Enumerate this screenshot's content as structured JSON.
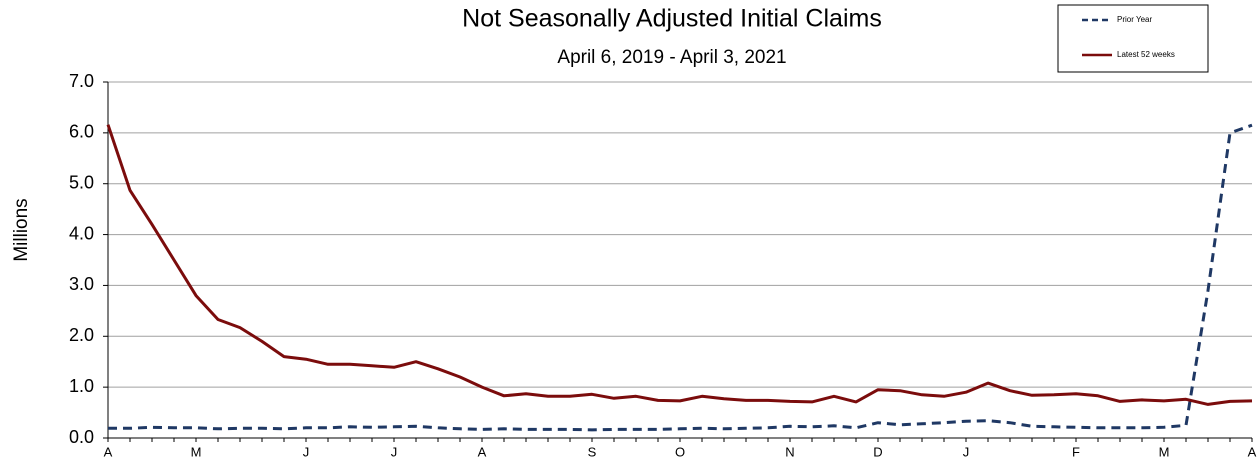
{
  "chart_data": {
    "type": "line",
    "title": "Not Seasonally Adjusted Initial Claims",
    "subtitle": "April 6, 2019  -  April 3, 2021",
    "y_label": "Millions",
    "categories": [
      "A",
      null,
      null,
      null,
      "M",
      null,
      null,
      null,
      null,
      "J",
      null,
      null,
      null,
      "J",
      null,
      null,
      null,
      "A",
      null,
      null,
      null,
      null,
      "S",
      null,
      null,
      null,
      "O",
      null,
      null,
      null,
      null,
      "N",
      null,
      null,
      null,
      "D",
      null,
      null,
      null,
      "J",
      null,
      null,
      null,
      null,
      "F",
      null,
      null,
      null,
      "M",
      null,
      null,
      null,
      "A"
    ],
    "series": [
      {
        "name": "Prior Year",
        "color": "#1f3864",
        "dashed": true,
        "values": [
          0.19,
          0.19,
          0.21,
          0.2,
          0.2,
          0.18,
          0.19,
          0.19,
          0.18,
          0.2,
          0.2,
          0.22,
          0.21,
          0.22,
          0.23,
          0.2,
          0.18,
          0.17,
          0.18,
          0.17,
          0.17,
          0.17,
          0.16,
          0.17,
          0.17,
          0.17,
          0.18,
          0.19,
          0.18,
          0.19,
          0.2,
          0.23,
          0.22,
          0.24,
          0.2,
          0.3,
          0.26,
          0.28,
          0.3,
          0.33,
          0.34,
          0.3,
          0.23,
          0.22,
          0.21,
          0.2,
          0.2,
          0.2,
          0.21,
          0.25,
          2.9,
          6.0,
          6.15
        ]
      },
      {
        "name": "Latest 52 weeks",
        "color": "#7b0c0c",
        "dashed": false,
        "values": [
          6.16,
          4.87,
          4.2,
          3.5,
          2.8,
          2.33,
          2.17,
          1.9,
          1.6,
          1.55,
          1.45,
          1.45,
          1.42,
          1.39,
          1.5,
          1.36,
          1.2,
          1.0,
          0.83,
          0.87,
          0.82,
          0.82,
          0.86,
          0.78,
          0.82,
          0.74,
          0.73,
          0.82,
          0.77,
          0.74,
          0.74,
          0.72,
          0.71,
          0.82,
          0.71,
          0.95,
          0.93,
          0.85,
          0.82,
          0.9,
          1.08,
          0.93,
          0.84,
          0.85,
          0.87,
          0.83,
          0.72,
          0.75,
          0.73,
          0.76,
          0.66,
          0.72,
          0.73
        ]
      }
    ],
    "ylim": [
      0,
      7
    ],
    "yticks": [
      {
        "value": 0,
        "label": "0.0"
      },
      {
        "value": 1,
        "label": "1.0"
      },
      {
        "value": 2,
        "label": "2.0"
      },
      {
        "value": 3,
        "label": "3.0"
      },
      {
        "value": 4,
        "label": "4.0"
      },
      {
        "value": 5,
        "label": "5.0"
      },
      {
        "value": 6,
        "label": "6.0"
      },
      {
        "value": 7,
        "label": "7.0"
      }
    ],
    "grid": true
  }
}
